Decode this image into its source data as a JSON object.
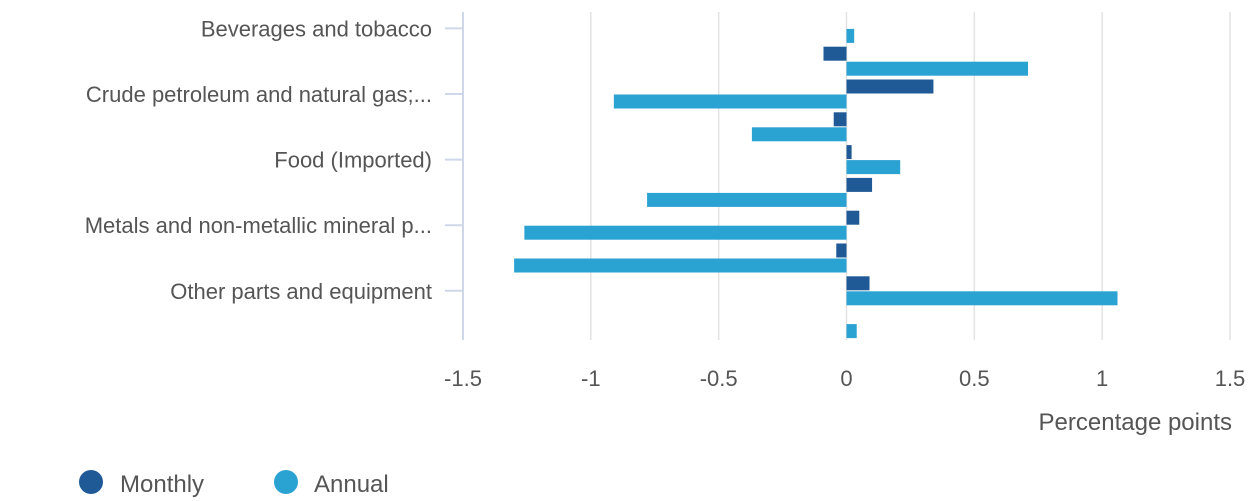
{
  "chart_data": {
    "type": "bar",
    "orientation": "horizontal",
    "categories": [
      "Beverages and tobacco",
      "",
      "Crude petroleum and natural gas;...",
      "",
      "Food (Imported)",
      "",
      "Metals and non-metallic mineral p...",
      "",
      "Other parts and equipment",
      ""
    ],
    "series": [
      {
        "name": "Monthly",
        "color": "#1f5a96",
        "values": [
          0.0,
          -0.09,
          0.34,
          -0.05,
          0.02,
          0.1,
          0.05,
          -0.04,
          0.09,
          0.0
        ]
      },
      {
        "name": "Annual",
        "color": "#2aa3d3",
        "values": [
          0.03,
          0.71,
          -0.91,
          -0.37,
          0.21,
          -0.78,
          -1.26,
          -1.3,
          1.06,
          0.04
        ]
      }
    ],
    "x_ticks": [
      "-1.5",
      "-1",
      "-0.5",
      "0",
      "0.5",
      "1",
      "1.5"
    ],
    "xlim": [
      -1.5,
      1.5
    ],
    "xlabel": "Percentage points",
    "grid": true,
    "legend_position": "bottom-left"
  },
  "legend": {
    "items": [
      {
        "label": "Monthly",
        "color": "#1f5a96"
      },
      {
        "label": "Annual",
        "color": "#2aa3d3"
      }
    ]
  }
}
